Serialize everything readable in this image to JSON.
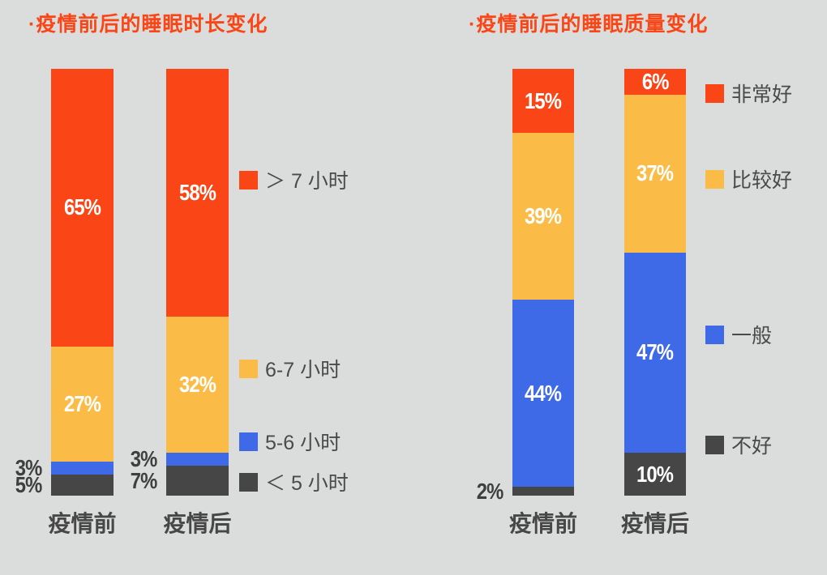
{
  "background_color": "#dbdddc",
  "title_color": "#fa4616",
  "text_color": "#474747",
  "chart_data": [
    {
      "type": "bar",
      "stacked": true,
      "title": "·疫情前后的睡眠时长变化",
      "categories": [
        "疫情前",
        "疫情后"
      ],
      "ylim": [
        0,
        100
      ],
      "grid": false,
      "legend_position": "right",
      "series": [
        {
          "id": "gt-7h",
          "name": "＞ 7 小时",
          "color": "#fa4616",
          "values": [
            65,
            58
          ],
          "labels": [
            "65%",
            "58%"
          ],
          "label_outside": [
            false,
            false
          ]
        },
        {
          "id": "6-7h",
          "name": "6-7 小时",
          "color": "#fbbc47",
          "values": [
            27,
            32
          ],
          "labels": [
            "27%",
            "32%"
          ],
          "label_outside": [
            false,
            false
          ]
        },
        {
          "id": "5-6h",
          "name": "5-6 小时",
          "color": "#3e6ae8",
          "values": [
            3,
            3
          ],
          "labels": [
            "3%",
            "3%"
          ],
          "label_outside": [
            true,
            true
          ]
        },
        {
          "id": "lt-5h",
          "name": "＜ 5 小时",
          "color": "#464646",
          "values": [
            5,
            7
          ],
          "labels": [
            "5%",
            "7%"
          ],
          "label_outside": [
            true,
            true
          ]
        }
      ]
    },
    {
      "type": "bar",
      "stacked": true,
      "title": "·疫情前后的睡眠质量变化",
      "categories": [
        "疫情前",
        "疫情后"
      ],
      "ylim": [
        0,
        100
      ],
      "grid": false,
      "legend_position": "right",
      "series": [
        {
          "id": "very-good",
          "name": "非常好",
          "color": "#fa4616",
          "values": [
            15,
            6
          ],
          "labels": [
            "15%",
            "6%"
          ],
          "label_outside": [
            false,
            false
          ]
        },
        {
          "id": "fairly-good",
          "name": "比较好",
          "color": "#fbbc47",
          "values": [
            39,
            37
          ],
          "labels": [
            "39%",
            "37%"
          ],
          "label_outside": [
            false,
            false
          ]
        },
        {
          "id": "average",
          "name": "一般",
          "color": "#3e6ae8",
          "values": [
            44,
            47
          ],
          "labels": [
            "44%",
            "47%"
          ],
          "label_outside": [
            false,
            false
          ]
        },
        {
          "id": "bad",
          "name": "不好",
          "color": "#464646",
          "values": [
            2,
            10
          ],
          "labels": [
            "2%",
            "10%"
          ],
          "label_outside": [
            true,
            false
          ]
        }
      ]
    }
  ]
}
